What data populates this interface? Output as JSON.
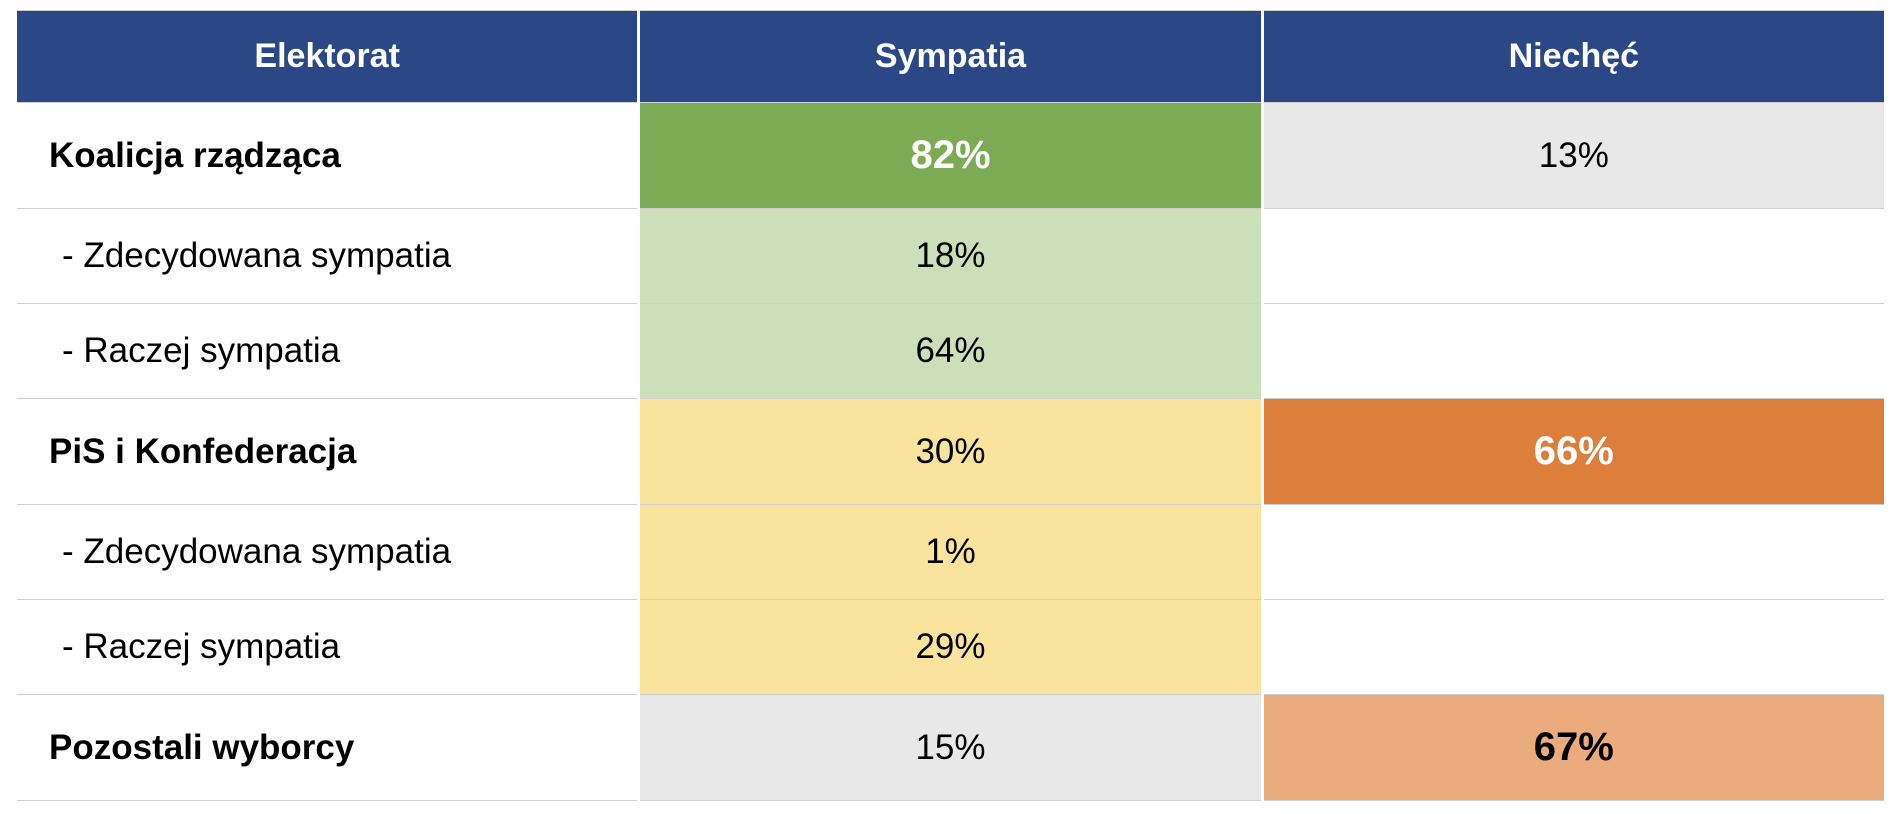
{
  "title": "Poll table: sympathy and aversion by electorate",
  "colors": {
    "header_background": "#2B4886",
    "header_text": "#FFFFFF",
    "green_strong": "#7CAB55",
    "green_light": "#CBDFB8",
    "yellow": "#FAE39C",
    "orange_strong": "#DC7E3C",
    "orange_light": "#EBAC7D",
    "gray": "#E8E8E8",
    "grid_line": "#CFCFCF"
  },
  "header": {
    "col1": "Elektorat",
    "col2": "Sympatia",
    "col3": "Niechęć"
  },
  "rows": {
    "r0": {
      "label": "Koalicja rządząca",
      "sympatia": "82%",
      "niechec": "13%"
    },
    "r1": {
      "label": "- Zdecydowana sympatia",
      "sympatia": "18%",
      "niechec": ""
    },
    "r2": {
      "label": "- Raczej sympatia",
      "sympatia": "64%",
      "niechec": ""
    },
    "r3": {
      "label": "PiS i Konfederacja",
      "sympatia": "30%",
      "niechec": "66%"
    },
    "r4": {
      "label": "- Zdecydowana sympatia",
      "sympatia": "1%",
      "niechec": ""
    },
    "r5": {
      "label": "- Raczej sympatia",
      "sympatia": "29%",
      "niechec": ""
    },
    "r6": {
      "label": "Pozostali wyborcy",
      "sympatia": "15%",
      "niechec": "67%"
    }
  },
  "chart_data": {
    "type": "table",
    "columns": [
      "Elektorat",
      "Sympatia",
      "Niechęć"
    ],
    "rows": [
      [
        "Koalicja rządząca",
        "82%",
        "13%"
      ],
      [
        "- Zdecydowana sympatia",
        "18%",
        ""
      ],
      [
        "- Raczej sympatia",
        "64%",
        ""
      ],
      [
        "PiS i Konfederacja",
        "30%",
        "66%"
      ],
      [
        "- Zdecydowana sympatia",
        "1%",
        ""
      ],
      [
        "- Raczej sympatia",
        "29%",
        ""
      ],
      [
        "Pozostali wyborcy",
        "15%",
        "67%"
      ]
    ],
    "numeric": {
      "sympatia": [
        82,
        18,
        64,
        30,
        1,
        29,
        15
      ],
      "niechec": [
        13,
        null,
        null,
        66,
        null,
        null,
        67
      ]
    },
    "emphasized_cells": [
      {
        "row": "Koalicja rządząca",
        "column": "Sympatia",
        "value": "82%",
        "style": "white-bold-on-green"
      },
      {
        "row": "PiS i Konfederacja",
        "column": "Niechęć",
        "value": "66%",
        "style": "white-bold-on-orange"
      },
      {
        "row": "Pozostali wyborcy",
        "column": "Niechęć",
        "value": "67%",
        "style": "black-bold-on-light-orange"
      }
    ]
  }
}
